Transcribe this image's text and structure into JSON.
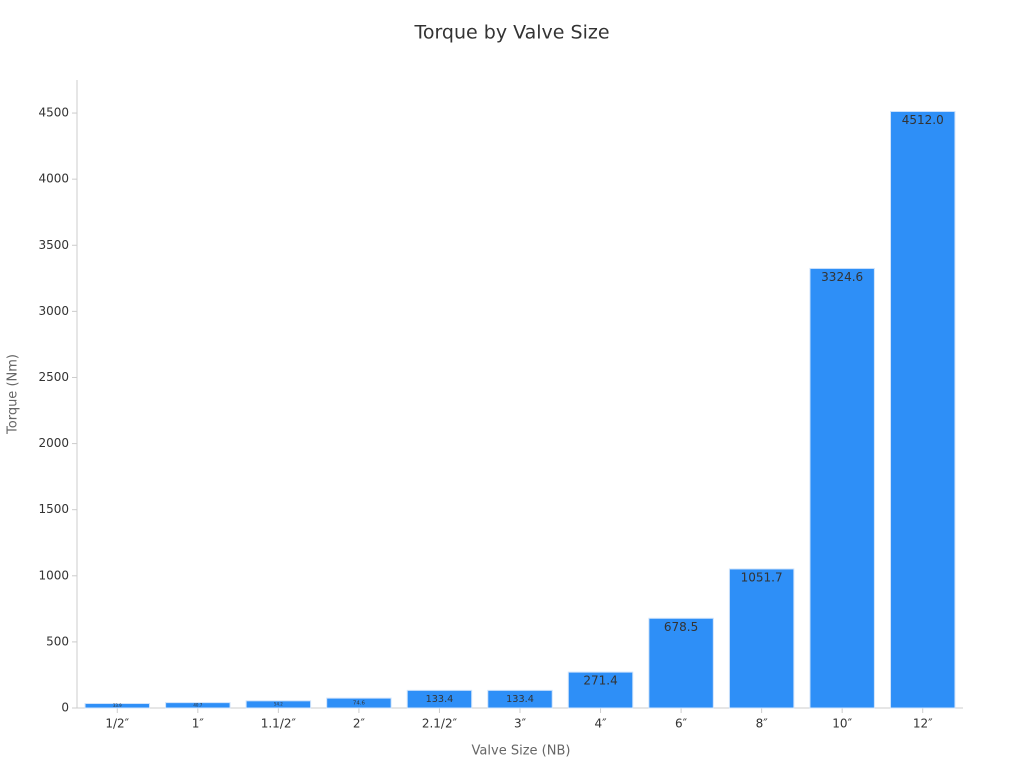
{
  "chart_data": {
    "type": "bar",
    "title": "Torque by Valve Size",
    "x_label": "Valve Size (NB)",
    "y_label": "Torque (Nm)",
    "categories": [
      "1/2″",
      "1″",
      "1.1/2″",
      "2″",
      "2.1/2″",
      "3″",
      "4″",
      "6″",
      "8″",
      "10″",
      "12″"
    ],
    "values": [
      33.9,
      40.7,
      54.2,
      74.6,
      133.4,
      133.4,
      271.4,
      678.5,
      1051.7,
      3324.6,
      4512.0
    ],
    "value_labels": [
      "33.9",
      "40.7",
      "54.2",
      "74.6",
      "133.4",
      "133.4",
      "271.4",
      "678.5",
      "1051.7",
      "3324.6",
      "4512.0"
    ],
    "color": "#2e8ff7",
    "ylim": [
      0,
      4750
    ],
    "yticks": [
      0,
      500,
      1000,
      1500,
      2000,
      2500,
      3000,
      3500,
      4000,
      4500
    ],
    "grid": false
  }
}
